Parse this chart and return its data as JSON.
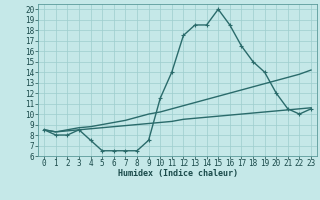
{
  "xlabel": "Humidex (Indice chaleur)",
  "ylabel": "",
  "bg_color": "#c5e8e8",
  "grid_color": "#9ecece",
  "line_color": "#2a6b6b",
  "x_values": [
    0,
    1,
    2,
    3,
    4,
    5,
    6,
    7,
    8,
    9,
    10,
    11,
    12,
    13,
    14,
    15,
    16,
    17,
    18,
    19,
    20,
    21,
    22,
    23
  ],
  "line1_y": [
    8.5,
    8.0,
    8.0,
    8.5,
    7.5,
    6.5,
    6.5,
    6.5,
    6.5,
    7.5,
    11.5,
    14.0,
    17.5,
    18.5,
    18.5,
    20.0,
    18.5,
    16.5,
    15.0,
    14.0,
    12.0,
    10.5,
    10.0,
    10.5
  ],
  "line2_y": [
    8.5,
    8.3,
    8.5,
    8.7,
    8.8,
    9.0,
    9.2,
    9.4,
    9.7,
    10.0,
    10.2,
    10.5,
    10.8,
    11.1,
    11.4,
    11.7,
    12.0,
    12.3,
    12.6,
    12.9,
    13.2,
    13.5,
    13.8,
    14.2
  ],
  "line3_y": [
    8.5,
    8.3,
    8.4,
    8.5,
    8.6,
    8.7,
    8.8,
    8.9,
    9.0,
    9.1,
    9.2,
    9.3,
    9.5,
    9.6,
    9.7,
    9.8,
    9.9,
    10.0,
    10.1,
    10.2,
    10.3,
    10.4,
    10.5,
    10.6
  ],
  "ylim": [
    6,
    20.5
  ],
  "xlim": [
    -0.5,
    23.5
  ],
  "yticks": [
    6,
    7,
    8,
    9,
    10,
    11,
    12,
    13,
    14,
    15,
    16,
    17,
    18,
    19,
    20
  ],
  "xtick_positions": [
    0,
    1,
    2,
    3,
    4,
    5,
    6,
    7,
    8,
    9,
    10,
    11,
    12,
    13,
    14,
    15,
    16,
    17,
    18,
    19,
    20,
    21,
    22,
    23
  ],
  "xtick_labels": [
    "0",
    "1",
    "2",
    "3",
    "4",
    "5",
    "6",
    "7",
    "8",
    "9",
    "10",
    "11",
    "12",
    "13",
    "14",
    "15",
    "16",
    "17",
    "18",
    "19",
    "20",
    "21",
    "22",
    "23"
  ],
  "marker_size": 3.0,
  "line_width": 1.0,
  "tick_fontsize": 5.5,
  "xlabel_fontsize": 6.0
}
